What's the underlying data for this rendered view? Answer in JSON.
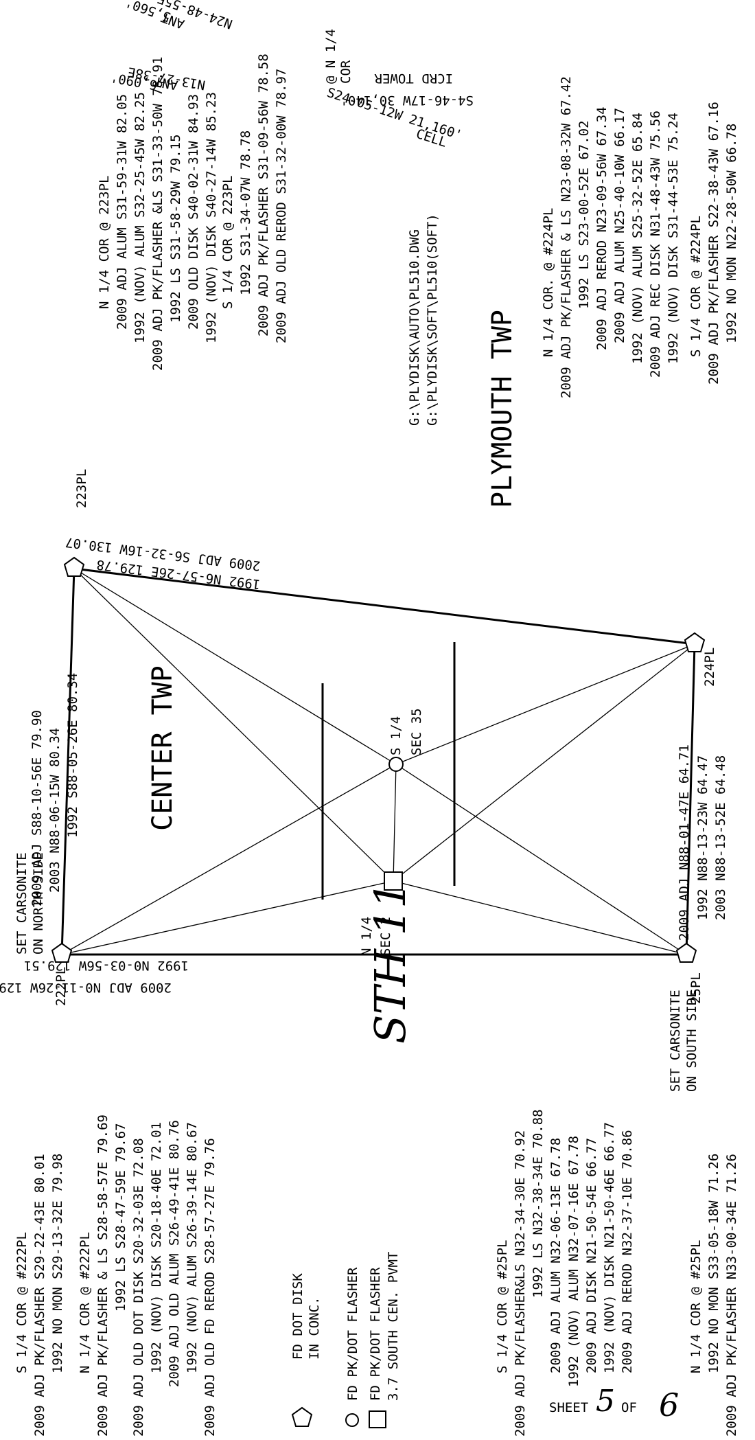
{
  "sheet": {
    "label": "SHEET",
    "number": "5",
    "of_label": "OF",
    "total": "6"
  },
  "hand_label": "STH 11",
  "twp_labels": {
    "center": "CENTER TWP",
    "plymouth": "PLYMOUTH TWP"
  },
  "file_paths": [
    "G:\\PLYDISK\\AUTO\\PL510.DWG",
    "G:\\PLYDISK\\SOFT\\PL510(SOFT)"
  ],
  "corners": {
    "c222": "222PL",
    "c223": "223PL",
    "c224": "224PL",
    "c25": "25PL",
    "s14sec35": [
      "S 1/4",
      "SEC 35"
    ],
    "n14sec2": [
      "N 1/4",
      "SEC 2"
    ],
    "n14cor": [
      "@ N 1/4",
      "COR"
    ]
  },
  "carsonite": {
    "north": [
      "SET CARSONITE",
      "ON NORTH SIDE"
    ],
    "south": [
      "SET CARSONITE",
      "ON SOUTH SIDE"
    ]
  },
  "bearings": {
    "top_line": [
      "2009 ADJ S88-10-56E 79.90",
      "2003 N88-06-15W 80.34",
      "1992 S88-05-26E 80.34"
    ],
    "bottom_line": [
      "2009 ADJ N88-01-47E 64.71",
      "1992 N88-13-23W 64.47",
      "2003 N88-13-52E 64.48"
    ],
    "left_line": [
      "1992 N0-03-56W 129.51",
      "2009 ADJ N0-11-26W 129.48"
    ],
    "right_line": [
      "2009 ADJ S6-32-16W 130.07",
      "1992 N6-57-26E 129.78"
    ]
  },
  "ties": {
    "ant1": [
      "N24-48-55E",
      "ANT",
      "5,560'"
    ],
    "ant2": [
      "N13-27-38E",
      "ANT",
      "6,090'"
    ],
    "tower": [
      "ICRD TOWER",
      "S4-46-17W 30,140'"
    ],
    "cell": [
      "S24-05-12W 21,160'",
      "CELL"
    ]
  },
  "blocks": {
    "b223_n": [
      "N 1/4 COR        @ 223PL",
      "2009 ADJ ALUM S31-59-31W 82.05",
      "1992 (NOV) ALUM S32-25-45W 82.25",
      "2009 ADJ PK/FLASHER &LS S31-33-50W 78.91",
      "1992 LS S31-58-29W 79.15",
      "2009 OLD DISK S40-02-31W 84.93",
      "1992 (NOV) DISK S40-27-14W 85.23"
    ],
    "b223_s": [
      "S 1/4 COR        @ 223PL",
      "1992 S31-34-07W 78.78",
      "2009 ADJ PK/FLASHER S31-09-56W 78.58",
      "2009 ADJ OLD REROD S31-32-00W 78.97"
    ],
    "b224_n": [
      "N 1/4 COR.     @ #224PL",
      "2009 ADJ PK/FLASHER & LS N23-08-32W 67.42",
      "1992 LS S23-00-52E 67.02",
      "2009 ADJ REROD N23-09-56W 67.34",
      "2009 ADJ ALUM N25-40-10W 66.17",
      "1992 (NOV) ALUM S25-32-52E 65.84",
      "2009 ADJ REC DISK N31-48-43W 75.56",
      "1992 (NOV) DISK S31-44-53E 75.24"
    ],
    "b224_s": [
      "S 1/4 COR        @ #224PL",
      "2009 ADJ PK/FLASHER S22-38-43W 67.16",
      "1992 NO MON N22-28-50W 66.78"
    ],
    "b222_s": [
      "S 1/4 COR    @ #222PL",
      "2009 ADJ PK/FLASHER S29-22-43E 80.01",
      "1992 NO MON S29-13-32E 79.98"
    ],
    "b222_n": [
      "N 1/4 COR    @ #222PL",
      "2009 ADJ PK/FLASHER & LS S28-58-57E 79.69",
      "1992 LS S28-47-59E 79.67",
      "2009 ADJ OLD DOT DISK S20-32-03E 72.08",
      "1992 (NOV) DISK S20-18-40E 72.01",
      "2009 ADJ OLD ALUM S26-49-41E 80.76",
      "1992 (NOV) ALUM S26-39-14E 80.67",
      "2009 ADJ OLD FD REROD S28-57-27E 79.76"
    ],
    "b25_s": [
      "S 1/4 COR    @ #25PL",
      "2009 ADJ PK/FLASHER&LS N32-34-30E 70.92",
      "1992 LS N32-38-34E 70.88",
      "2009 ADJ ALUM N32-06-13E 67.78",
      "1992 (NOV) ALUM N32-07-16E 67.78",
      "2009 ADJ DISK N21-50-54E 66.77",
      "1992 (NOV) DISK N21-50-46E 66.77",
      "2009 ADJ REROD N32-37-10E 70.86"
    ],
    "b25_n": [
      "N 1/4 COR     @ #25PL",
      "1992 NO MON S33-05-18W 71.26",
      "2009 ADJ PK/FLASHER N33-00-34E 71.26"
    ]
  },
  "legend": {
    "fd_dot": [
      "FD DOT DISK",
      "IN CONC."
    ],
    "pk_circle": "FD PK/DOT FLASHER",
    "pk_square": [
      "FD PK/DOT FLASHER",
      "3.7 SOUTH CEN. PVMT"
    ]
  }
}
